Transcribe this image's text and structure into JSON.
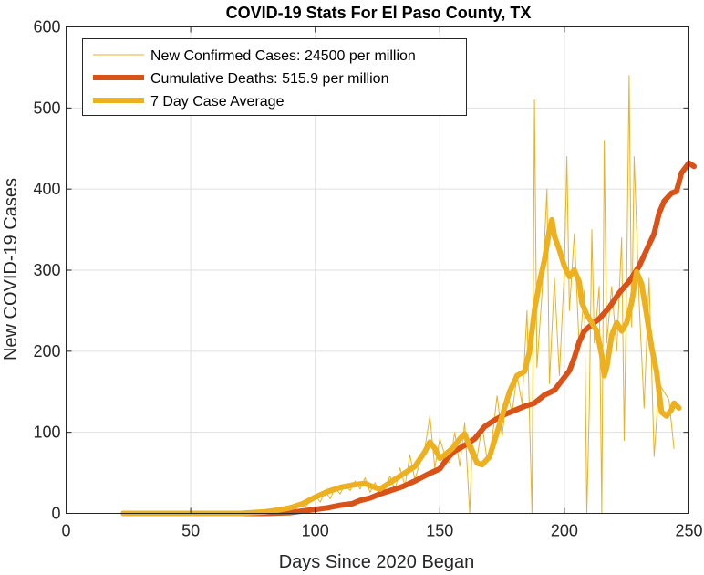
{
  "chart_data": {
    "type": "line",
    "title": "COVID-19 Stats For El Paso County, TX",
    "xlabel": "Days Since 2020 Began",
    "ylabel": "New COVID-19 Cases",
    "xlim": [
      0,
      250
    ],
    "ylim": [
      0,
      600
    ],
    "xticks": [
      0,
      50,
      100,
      150,
      200,
      250
    ],
    "yticks": [
      0,
      100,
      200,
      300,
      400,
      500,
      600
    ],
    "grid": true,
    "legend_position": "top-left",
    "series": [
      {
        "name": "New Confirmed Cases: 24500 per million",
        "color": "#EDB120",
        "style": "thin",
        "points": [
          [
            23,
            0
          ],
          [
            30,
            0
          ],
          [
            40,
            0
          ],
          [
            50,
            0
          ],
          [
            60,
            0
          ],
          [
            70,
            0
          ],
          [
            75,
            1
          ],
          [
            80,
            3
          ],
          [
            84,
            4
          ],
          [
            86,
            2
          ],
          [
            88,
            6
          ],
          [
            90,
            10
          ],
          [
            92,
            5
          ],
          [
            94,
            12
          ],
          [
            96,
            8
          ],
          [
            98,
            15
          ],
          [
            100,
            22
          ],
          [
            102,
            14
          ],
          [
            104,
            28
          ],
          [
            106,
            18
          ],
          [
            108,
            32
          ],
          [
            110,
            24
          ],
          [
            112,
            36
          ],
          [
            114,
            28
          ],
          [
            116,
            40
          ],
          [
            118,
            30
          ],
          [
            120,
            44
          ],
          [
            122,
            26
          ],
          [
            124,
            38
          ],
          [
            126,
            22
          ],
          [
            128,
            30
          ],
          [
            130,
            46
          ],
          [
            132,
            28
          ],
          [
            134,
            56
          ],
          [
            136,
            34
          ],
          [
            138,
            72
          ],
          [
            140,
            42
          ],
          [
            142,
            62
          ],
          [
            144,
            80
          ],
          [
            146,
            120
          ],
          [
            148,
            56
          ],
          [
            150,
            92
          ],
          [
            152,
            72
          ],
          [
            154,
            62
          ],
          [
            156,
            100
          ],
          [
            158,
            58
          ],
          [
            160,
            112
          ],
          [
            162,
            0
          ],
          [
            163,
            85
          ],
          [
            165,
            70
          ],
          [
            167,
            108
          ],
          [
            169,
            66
          ],
          [
            171,
            92
          ],
          [
            173,
            145
          ],
          [
            175,
            95
          ],
          [
            177,
            150
          ],
          [
            179,
            124
          ],
          [
            181,
            170
          ],
          [
            183,
            135
          ],
          [
            185,
            250
          ],
          [
            186,
            115
          ],
          [
            187,
            0
          ],
          [
            188,
            510
          ],
          [
            189,
            180
          ],
          [
            191,
            270
          ],
          [
            193,
            400
          ],
          [
            194,
            160
          ],
          [
            196,
            290
          ],
          [
            198,
            170
          ],
          [
            200,
            300
          ],
          [
            201,
            440
          ],
          [
            202,
            250
          ],
          [
            204,
            345
          ],
          [
            206,
            200
          ],
          [
            208,
            275
          ],
          [
            209,
            0
          ],
          [
            210,
            130
          ],
          [
            211,
            350
          ],
          [
            212,
            210
          ],
          [
            214,
            280
          ],
          [
            215,
            0
          ],
          [
            216,
            460
          ],
          [
            217,
            210
          ],
          [
            219,
            280
          ],
          [
            221,
            200
          ],
          [
            223,
            340
          ],
          [
            224,
            90
          ],
          [
            225,
            290
          ],
          [
            226,
            540
          ],
          [
            227,
            230
          ],
          [
            228,
            440
          ],
          [
            230,
            260
          ],
          [
            232,
            130
          ],
          [
            234,
            290
          ],
          [
            236,
            70
          ],
          [
            238,
            160
          ],
          [
            240,
            150
          ],
          [
            242,
            140
          ],
          [
            244,
            80
          ]
        ]
      },
      {
        "name": "Cumulative Deaths: 515.9 per million",
        "color": "#D95319",
        "style": "thick",
        "points": [
          [
            23,
            0
          ],
          [
            60,
            0
          ],
          [
            80,
            0
          ],
          [
            90,
            1
          ],
          [
            95,
            3
          ],
          [
            100,
            5
          ],
          [
            105,
            7
          ],
          [
            110,
            10
          ],
          [
            115,
            12
          ],
          [
            118,
            16
          ],
          [
            122,
            19
          ],
          [
            126,
            24
          ],
          [
            130,
            28
          ],
          [
            135,
            33
          ],
          [
            140,
            40
          ],
          [
            145,
            48
          ],
          [
            150,
            55
          ],
          [
            153,
            68
          ],
          [
            156,
            77
          ],
          [
            160,
            84
          ],
          [
            164,
            92
          ],
          [
            168,
            107
          ],
          [
            172,
            115
          ],
          [
            176,
            122
          ],
          [
            180,
            127
          ],
          [
            184,
            132
          ],
          [
            188,
            136
          ],
          [
            192,
            146
          ],
          [
            196,
            152
          ],
          [
            198,
            160
          ],
          [
            200,
            168
          ],
          [
            202,
            176
          ],
          [
            204,
            192
          ],
          [
            206,
            212
          ],
          [
            208,
            225
          ],
          [
            211,
            233
          ],
          [
            214,
            240
          ],
          [
            218,
            254
          ],
          [
            222,
            272
          ],
          [
            226,
            286
          ],
          [
            230,
            305
          ],
          [
            233,
            325
          ],
          [
            236,
            345
          ],
          [
            238,
            370
          ],
          [
            240,
            385
          ],
          [
            243,
            395
          ],
          [
            245,
            397
          ],
          [
            247,
            420
          ],
          [
            250,
            432
          ],
          [
            252,
            428
          ]
        ]
      },
      {
        "name": "7 Day Case Average",
        "color": "#EDB120",
        "style": "thick",
        "points": [
          [
            23,
            0
          ],
          [
            70,
            0
          ],
          [
            80,
            2
          ],
          [
            85,
            4
          ],
          [
            90,
            7
          ],
          [
            95,
            12
          ],
          [
            100,
            20
          ],
          [
            105,
            27
          ],
          [
            110,
            32
          ],
          [
            115,
            35
          ],
          [
            120,
            37
          ],
          [
            123,
            33
          ],
          [
            126,
            30
          ],
          [
            129,
            36
          ],
          [
            132,
            42
          ],
          [
            136,
            50
          ],
          [
            140,
            58
          ],
          [
            144,
            76
          ],
          [
            146,
            88
          ],
          [
            148,
            80
          ],
          [
            150,
            68
          ],
          [
            152,
            72
          ],
          [
            155,
            80
          ],
          [
            158,
            92
          ],
          [
            160,
            98
          ],
          [
            162,
            82
          ],
          [
            165,
            62
          ],
          [
            167,
            60
          ],
          [
            170,
            70
          ],
          [
            173,
            100
          ],
          [
            176,
            130
          ],
          [
            178,
            150
          ],
          [
            181,
            170
          ],
          [
            184,
            175
          ],
          [
            186,
            200
          ],
          [
            188,
            250
          ],
          [
            190,
            285
          ],
          [
            192,
            312
          ],
          [
            194,
            350
          ],
          [
            195,
            362
          ],
          [
            196,
            342
          ],
          [
            198,
            325
          ],
          [
            200,
            305
          ],
          [
            202,
            292
          ],
          [
            204,
            300
          ],
          [
            206,
            285
          ],
          [
            207,
            260
          ],
          [
            209,
            245
          ],
          [
            211,
            235
          ],
          [
            213,
            225
          ],
          [
            215,
            195
          ],
          [
            216,
            170
          ],
          [
            217,
            180
          ],
          [
            219,
            220
          ],
          [
            221,
            235
          ],
          [
            223,
            225
          ],
          [
            225,
            235
          ],
          [
            227,
            260
          ],
          [
            229,
            298
          ],
          [
            231,
            283
          ],
          [
            233,
            245
          ],
          [
            235,
            205
          ],
          [
            237,
            175
          ],
          [
            239,
            125
          ],
          [
            241,
            120
          ],
          [
            243,
            128
          ],
          [
            244,
            136
          ],
          [
            246,
            130
          ]
        ]
      }
    ]
  }
}
